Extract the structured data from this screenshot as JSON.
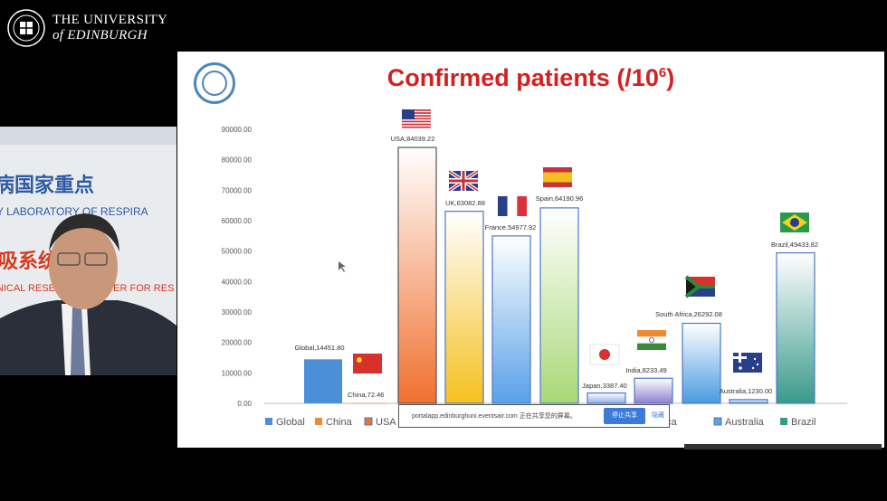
{
  "header": {
    "university_line1": "THE UNIVERSITY",
    "university_line2": "of EDINBURGH"
  },
  "speaker_panel": {
    "bg_text_rows": [
      "病国家重点",
      "Y LABORATORY OF RESPIRA",
      "吸系统",
      "NICAL RESEARCH CENTER FOR RES"
    ]
  },
  "slide": {
    "title": "Confirmed patients (/10",
    "title_exp": "6",
    "title_close": ")"
  },
  "chart_data": {
    "type": "bar",
    "title": "Confirmed patients (/10^6)",
    "categories": [
      "Global",
      "China",
      "USA",
      "UK",
      "France",
      "Spain",
      "Japan",
      "India",
      "South Africa",
      "Australia",
      "Brazil"
    ],
    "values": [
      14451.8,
      72.46,
      84039.22,
      63082.88,
      54977.92,
      64190.96,
      3387.4,
      8233.49,
      26292.08,
      1230.0,
      49433.82
    ],
    "data_labels": [
      "Global,14451.80",
      "China,72.46",
      "USA,84039.22",
      "UK,63082.88",
      "France,54977.92",
      "Spain,64190.96",
      "Japan,3387.40",
      "India,8233.49",
      "South Africa,26292.08",
      "Australia,1230.00",
      "Brazil,49433.82"
    ],
    "yticks": [
      "0.00",
      "10000.00",
      "20000.00",
      "30000.00",
      "40000.00",
      "50000.00",
      "60000.00",
      "70000.00",
      "80000.00",
      "90000.00"
    ],
    "ylim": [
      0,
      90000
    ],
    "legend_visible": [
      "Global",
      "China",
      "USA",
      "",
      "",
      "",
      "",
      "",
      "n Africa",
      "Australia",
      "Brazil"
    ],
    "legend_placement": "bottom",
    "colors": [
      "#4a8fd8",
      "#f08a30",
      "#f07030",
      "#f5c020",
      "#5aa0e8",
      "#a8d878",
      "#8fb0e0",
      "#9080d0",
      "#4a9ae0",
      "#6a9ad8",
      "#3a9a8a"
    ],
    "flags": [
      "",
      "china-flag-icon",
      "usa-flag-icon",
      "uk-flag-icon",
      "france-flag-icon",
      "spain-flag-icon",
      "japan-flag-icon",
      "india-flag-icon",
      "south-africa-flag-icon",
      "australia-flag-icon",
      "brazil-flag-icon"
    ]
  },
  "notice_bar": {
    "text": "portalapp.edinburghuni.eventsair.com 正在共享您的屏幕。",
    "stop_label": "停止共享",
    "hide_label": "隐藏"
  }
}
